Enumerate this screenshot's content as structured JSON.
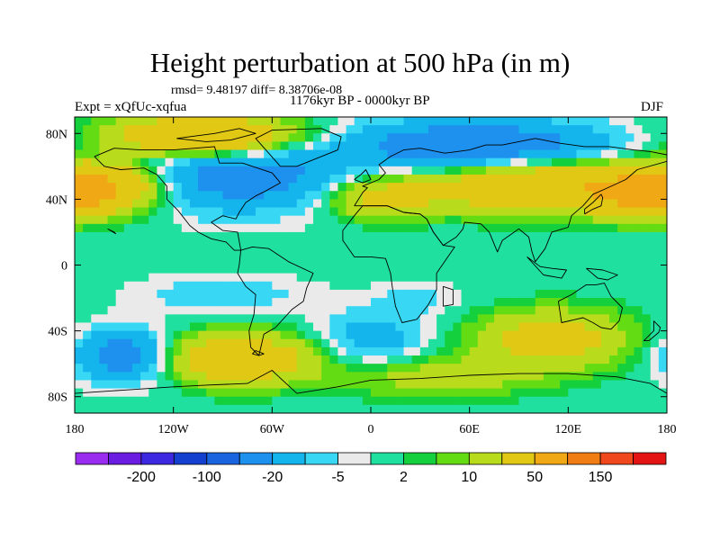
{
  "title": "Height perturbation at 500 hPa (in m)",
  "subtitle_stats": "rmsd= 9.48197 diff= 8.38706e-08",
  "subtitle_period": "1176kyr BP - 0000kyr BP",
  "experiment": "Expt = xQfUc-xqfua",
  "season": "DJF",
  "lat_ticks": [
    {
      "lat": 80,
      "label": "80N"
    },
    {
      "lat": 40,
      "label": "40N"
    },
    {
      "lat": 0,
      "label": "0"
    },
    {
      "lat": -40,
      "label": "40S"
    },
    {
      "lat": -80,
      "label": "80S"
    }
  ],
  "lon_ticks": [
    {
      "lon": -180,
      "label": "180"
    },
    {
      "lon": -120,
      "label": "120W"
    },
    {
      "lon": -60,
      "label": "60W"
    },
    {
      "lon": 0,
      "label": "0"
    },
    {
      "lon": 60,
      "label": "60E"
    },
    {
      "lon": 120,
      "label": "120E"
    },
    {
      "lon": 180,
      "label": "180"
    }
  ],
  "colorbar": {
    "colors": [
      "#9a2cf0",
      "#6a1ce0",
      "#3c28e0",
      "#1440d0",
      "#1a64e0",
      "#1e90ee",
      "#14b4ec",
      "#38d8f4",
      "#eaeaea",
      "#20e0a0",
      "#14d03c",
      "#64dc14",
      "#b8dc1c",
      "#e0c814",
      "#f0a814",
      "#f07c14",
      "#f0481c",
      "#e41414"
    ],
    "labels": [
      {
        "after_index": 1,
        "text": "-200"
      },
      {
        "after_index": 3,
        "text": "-100"
      },
      {
        "after_index": 5,
        "text": "-20"
      },
      {
        "after_index": 7,
        "text": "-5"
      },
      {
        "after_index": 9,
        "text": "2"
      },
      {
        "after_index": 11,
        "text": "10"
      },
      {
        "after_index": 13,
        "text": "50"
      },
      {
        "after_index": 15,
        "text": "150"
      }
    ]
  },
  "field_anomalies": [
    {
      "name": "north-atlantic-low",
      "lon": -80,
      "lat": 55,
      "rlon": 60,
      "rlat": 22,
      "value": -30
    },
    {
      "name": "eurasia-arctic-low",
      "lon": 65,
      "lat": 72,
      "rlon": 80,
      "rlat": 16,
      "value": -35
    },
    {
      "name": "arctic-greenland-high",
      "lon": -100,
      "lat": 78,
      "rlon": 55,
      "rlat": 12,
      "value": 55
    },
    {
      "name": "north-pacific-high",
      "lon": -168,
      "lat": 47,
      "rlon": 35,
      "rlat": 14,
      "value": 55
    },
    {
      "name": "siberia-high",
      "lon": 110,
      "lat": 48,
      "rlon": 75,
      "rlat": 15,
      "value": 50
    },
    {
      "name": "east-atlantic-high",
      "lon": 5,
      "lat": 40,
      "rlon": 30,
      "rlat": 12,
      "value": 25
    },
    {
      "name": "north-pacific-east-high",
      "lon": 165,
      "lat": 40,
      "rlon": 25,
      "rlat": 12,
      "value": 30
    },
    {
      "name": "south-pacific-west-low",
      "lon": -150,
      "lat": -55,
      "rlon": 30,
      "rlat": 16,
      "value": -30
    },
    {
      "name": "south-pacific-east-high",
      "lon": -80,
      "lat": -57,
      "rlon": 45,
      "rlat": 15,
      "value": 40
    },
    {
      "name": "south-atlantic-low",
      "lon": 0,
      "lat": -45,
      "rlon": 35,
      "rlat": 17,
      "value": -15
    },
    {
      "name": "indian-ocean-high",
      "lon": 110,
      "lat": -45,
      "rlon": 45,
      "rlat": 17,
      "value": 30
    },
    {
      "name": "south-pacific-low",
      "lon": -90,
      "lat": -18,
      "rlon": 55,
      "rlat": 12,
      "value": -8
    },
    {
      "name": "southern-ocean-high",
      "lon": 40,
      "lat": -68,
      "rlon": 60,
      "rlat": 12,
      "value": 15
    },
    {
      "name": "africa-low",
      "lon": 30,
      "lat": -20,
      "rlon": 30,
      "rlat": 10,
      "value": -6
    }
  ]
}
